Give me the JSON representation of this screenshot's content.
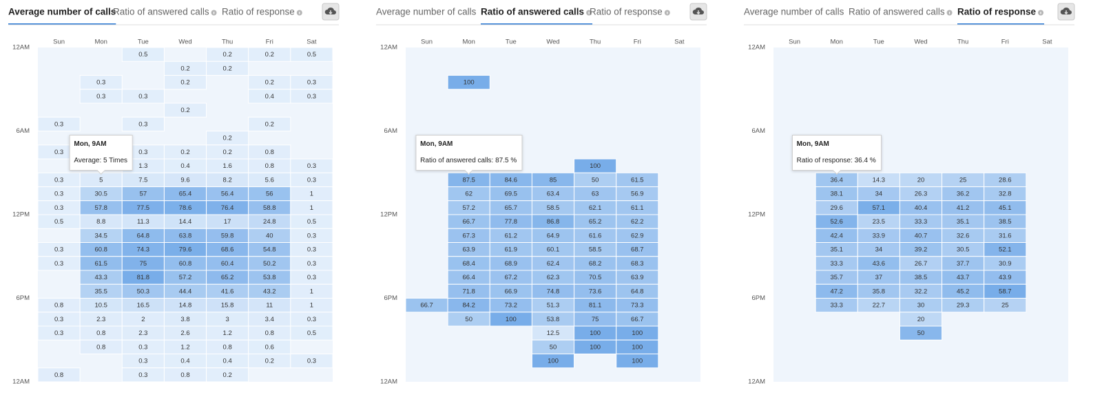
{
  "chart_data": [
    {
      "type": "heatmap",
      "tabs": [
        "Average number of calls",
        "Ratio of answered calls",
        "Ratio of response"
      ],
      "active_tab": 0,
      "categories": [
        "Sun",
        "Mon",
        "Tue",
        "Wed",
        "Thu",
        "Fri",
        "Sat"
      ],
      "ylim": [
        0,
        24
      ],
      "yticks": [
        {
          "value": 0,
          "label": "12AM"
        },
        {
          "value": 6,
          "label": "6AM"
        },
        {
          "value": 12,
          "label": "12PM"
        },
        {
          "value": 18,
          "label": "6PM"
        },
        {
          "value": 24,
          "label": "12AM"
        }
      ],
      "colors": [
        "#e2eefb",
        "#78ade9"
      ],
      "tooltip": {
        "title": "Mon, 9AM",
        "text": "Average: 5 Times"
      },
      "values": [
        [
          null,
          null,
          0.5,
          null,
          0.2,
          0.2,
          0.5
        ],
        [
          null,
          null,
          null,
          0.2,
          0.2,
          null,
          null
        ],
        [
          null,
          0.3,
          null,
          0.2,
          null,
          0.2,
          0.3
        ],
        [
          null,
          0.3,
          0.3,
          null,
          null,
          0.4,
          0.3
        ],
        [
          null,
          null,
          null,
          0.2,
          null,
          null,
          null
        ],
        [
          0.3,
          null,
          0.3,
          null,
          null,
          0.2,
          null
        ],
        [
          null,
          null,
          null,
          null,
          0.2,
          null,
          null
        ],
        [
          0.3,
          null,
          0.3,
          0.2,
          0.2,
          0.8,
          null
        ],
        [
          null,
          null,
          1.3,
          0.4,
          1.6,
          0.8,
          0.3
        ],
        [
          0.3,
          5,
          7.5,
          9.6,
          8.2,
          5.6,
          0.3
        ],
        [
          0.3,
          30.5,
          57,
          65.4,
          56.4,
          56,
          1
        ],
        [
          0.3,
          57.8,
          77.5,
          78.6,
          76.4,
          58.8,
          1
        ],
        [
          0.5,
          8.8,
          11.3,
          14.4,
          17,
          24.8,
          0.5
        ],
        [
          null,
          34.5,
          64.8,
          63.8,
          59.8,
          40,
          0.3
        ],
        [
          0.3,
          60.8,
          74.3,
          79.6,
          68.6,
          54.8,
          0.3
        ],
        [
          0.3,
          61.5,
          75,
          60.8,
          60.4,
          50.2,
          0.3
        ],
        [
          null,
          43.3,
          81.8,
          57.2,
          65.2,
          53.8,
          0.3
        ],
        [
          null,
          35.5,
          50.3,
          44.4,
          41.6,
          43.2,
          1
        ],
        [
          0.8,
          10.5,
          16.5,
          14.8,
          15.8,
          11,
          1
        ],
        [
          0.3,
          2.3,
          2,
          3.8,
          3,
          3.4,
          0.3
        ],
        [
          0.3,
          0.8,
          2.3,
          2.6,
          1.2,
          0.8,
          0.5
        ],
        [
          null,
          0.8,
          0.3,
          1.2,
          0.8,
          0.6,
          null
        ],
        [
          null,
          null,
          0.3,
          0.4,
          0.4,
          0.2,
          0.3
        ],
        [
          0.8,
          null,
          0.3,
          0.8,
          0.2,
          null,
          null
        ]
      ]
    },
    {
      "type": "heatmap",
      "tabs": [
        "Average number of calls",
        "Ratio of answered calls",
        "Ratio of response"
      ],
      "active_tab": 1,
      "categories": [
        "Sun",
        "Mon",
        "Tue",
        "Wed",
        "Thu",
        "Fri",
        "Sat"
      ],
      "ylim": [
        0,
        24
      ],
      "yticks": [
        {
          "value": 0,
          "label": "12AM"
        },
        {
          "value": 6,
          "label": "6AM"
        },
        {
          "value": 12,
          "label": "12PM"
        },
        {
          "value": 18,
          "label": "6PM"
        },
        {
          "value": 24,
          "label": "12AM"
        }
      ],
      "colors": [
        "#e2eefb",
        "#78ade9"
      ],
      "tooltip": {
        "title": "Mon, 9AM",
        "text": "Ratio of answered calls: 87.5 %"
      },
      "values": [
        [
          null,
          null,
          null,
          null,
          null,
          null,
          null
        ],
        [
          null,
          null,
          null,
          null,
          null,
          null,
          null
        ],
        [
          null,
          100,
          null,
          null,
          null,
          null,
          null
        ],
        [
          null,
          null,
          null,
          null,
          null,
          null,
          null
        ],
        [
          null,
          null,
          null,
          null,
          null,
          null,
          null
        ],
        [
          null,
          null,
          null,
          null,
          null,
          null,
          null
        ],
        [
          null,
          null,
          null,
          null,
          null,
          null,
          null
        ],
        [
          null,
          null,
          null,
          null,
          null,
          null,
          null
        ],
        [
          null,
          null,
          null,
          null,
          100,
          null,
          null
        ],
        [
          null,
          87.5,
          84.6,
          85,
          50,
          61.5,
          null
        ],
        [
          null,
          62,
          69.5,
          63.4,
          63,
          56.9,
          null
        ],
        [
          null,
          57.2,
          65.7,
          58.5,
          62.1,
          61.1,
          null
        ],
        [
          null,
          66.7,
          77.8,
          86.8,
          65.2,
          62.2,
          null
        ],
        [
          null,
          67.3,
          61.2,
          64.9,
          61.6,
          62.9,
          null
        ],
        [
          null,
          63.9,
          61.9,
          60.1,
          58.5,
          68.7,
          null
        ],
        [
          null,
          68.4,
          68.9,
          62.4,
          68.2,
          68.3,
          null
        ],
        [
          null,
          66.4,
          67.2,
          62.3,
          70.5,
          63.9,
          null
        ],
        [
          null,
          71.8,
          66.9,
          74.8,
          73.6,
          64.8,
          null
        ],
        [
          66.7,
          84.2,
          73.2,
          51.3,
          81.1,
          73.3,
          null
        ],
        [
          null,
          50,
          100,
          53.8,
          75,
          66.7,
          null
        ],
        [
          null,
          null,
          null,
          12.5,
          100,
          100,
          null
        ],
        [
          null,
          null,
          null,
          50,
          100,
          100,
          null
        ],
        [
          null,
          null,
          null,
          100,
          null,
          100,
          null
        ],
        [
          null,
          null,
          null,
          null,
          null,
          null,
          null
        ]
      ]
    },
    {
      "type": "heatmap",
      "tabs": [
        "Average number of calls",
        "Ratio of answered calls",
        "Ratio of response"
      ],
      "active_tab": 2,
      "categories": [
        "Sun",
        "Mon",
        "Tue",
        "Wed",
        "Thu",
        "Fri",
        "Sat"
      ],
      "ylim": [
        0,
        24
      ],
      "yticks": [
        {
          "value": 0,
          "label": "12AM"
        },
        {
          "value": 6,
          "label": "6AM"
        },
        {
          "value": 12,
          "label": "12PM"
        },
        {
          "value": 18,
          "label": "6PM"
        },
        {
          "value": 24,
          "label": "12AM"
        }
      ],
      "colors": [
        "#e2eefb",
        "#78ade9"
      ],
      "tooltip": {
        "title": "Mon, 9AM",
        "text": "Ratio of response: 36.4 %"
      },
      "values": [
        [
          null,
          null,
          null,
          null,
          null,
          null,
          null
        ],
        [
          null,
          null,
          null,
          null,
          null,
          null,
          null
        ],
        [
          null,
          null,
          null,
          null,
          null,
          null,
          null
        ],
        [
          null,
          null,
          null,
          null,
          null,
          null,
          null
        ],
        [
          null,
          null,
          null,
          null,
          null,
          null,
          null
        ],
        [
          null,
          null,
          null,
          null,
          null,
          null,
          null
        ],
        [
          null,
          null,
          null,
          null,
          null,
          null,
          null
        ],
        [
          null,
          null,
          null,
          null,
          null,
          null,
          null
        ],
        [
          null,
          null,
          null,
          null,
          null,
          null,
          null
        ],
        [
          null,
          36.4,
          14.3,
          20,
          25,
          28.6,
          null
        ],
        [
          null,
          38.1,
          34,
          26.3,
          36.2,
          32.8,
          null
        ],
        [
          null,
          29.6,
          57.1,
          40.4,
          41.2,
          45.1,
          null
        ],
        [
          null,
          52.6,
          23.5,
          33.3,
          35.1,
          38.5,
          null
        ],
        [
          null,
          42.4,
          33.9,
          40.7,
          32.6,
          31.6,
          null
        ],
        [
          null,
          35.1,
          34,
          39.2,
          30.5,
          52.1,
          null
        ],
        [
          null,
          33.3,
          43.6,
          26.7,
          37.7,
          30.9,
          null
        ],
        [
          null,
          35.7,
          37,
          38.5,
          43.7,
          43.9,
          null
        ],
        [
          null,
          47.2,
          35.8,
          32.2,
          45.2,
          58.7,
          null
        ],
        [
          null,
          33.3,
          22.7,
          30,
          29.3,
          25,
          null
        ],
        [
          null,
          null,
          null,
          20,
          null,
          null,
          null
        ],
        [
          null,
          null,
          null,
          50,
          null,
          null,
          null
        ],
        [
          null,
          null,
          null,
          null,
          null,
          null,
          null
        ],
        [
          null,
          null,
          null,
          null,
          null,
          null,
          null
        ],
        [
          null,
          null,
          null,
          null,
          null,
          null,
          null
        ]
      ]
    }
  ]
}
